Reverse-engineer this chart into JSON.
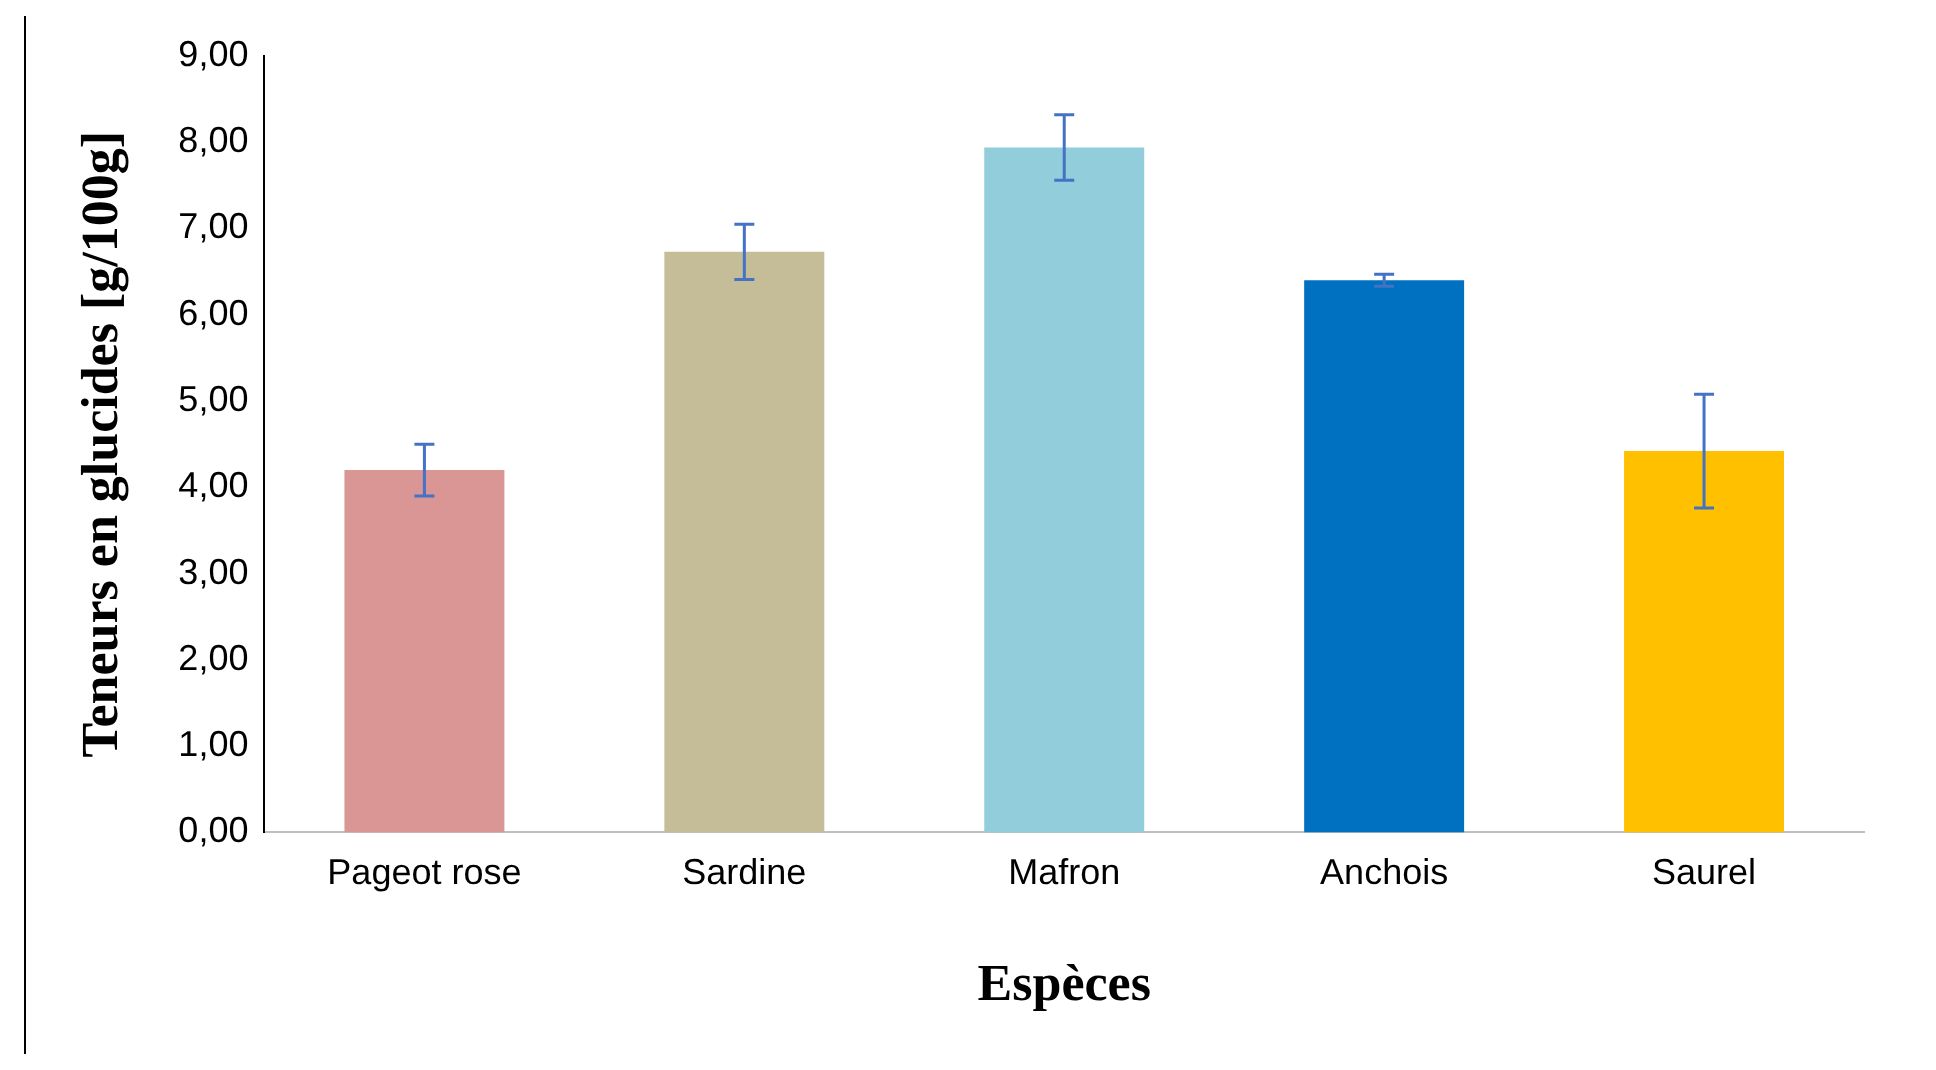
{
  "chart_data": {
    "type": "bar",
    "xlabel": "Espèces",
    "ylabel": "Teneurs en glucides [g/100g]",
    "categories": [
      "Pageot rose",
      "Sardine",
      "Mafron",
      "Anchois",
      "Saurel"
    ],
    "values": [
      4.2,
      6.73,
      7.94,
      6.4,
      4.42
    ],
    "colors": [
      "#d99694",
      "#c4bd97",
      "#92cddc",
      "#0070c0",
      "#ffc000"
    ],
    "errors": [
      0.3,
      0.32,
      0.38,
      0.07,
      0.66
    ],
    "ylim": [
      0,
      9
    ],
    "yticks": [
      {
        "value": 0,
        "label": "0,00"
      },
      {
        "value": 1,
        "label": "1,00"
      },
      {
        "value": 2,
        "label": "2,00"
      },
      {
        "value": 3,
        "label": "3,00"
      },
      {
        "value": 4,
        "label": "4,00"
      },
      {
        "value": 5,
        "label": "5,00"
      },
      {
        "value": 6,
        "label": "6,00"
      },
      {
        "value": 7,
        "label": "7,00"
      },
      {
        "value": 8,
        "label": "8,00"
      },
      {
        "value": 9,
        "label": "9,00"
      }
    ],
    "grid": false,
    "legend": false
  }
}
